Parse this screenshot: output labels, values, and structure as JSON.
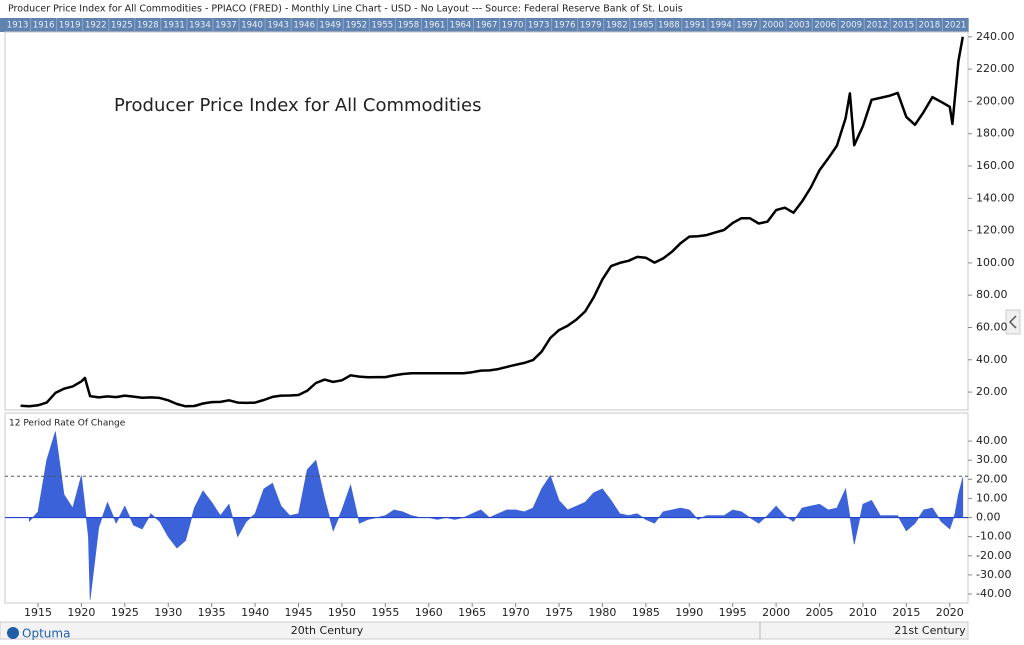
{
  "window_title": "Producer Price Index for All Commodities - PPIACO (FRED) - Monthly Line Chart - USD - No Layout --- Source: Federal Reserve Bank of St. Louis",
  "brand": "Optuma",
  "timeline": [
    1913,
    1916,
    1919,
    1922,
    1925,
    1928,
    1931,
    1934,
    1937,
    1940,
    1943,
    1946,
    1949,
    1952,
    1955,
    1958,
    1961,
    1964,
    1967,
    1970,
    1973,
    1976,
    1979,
    1982,
    1985,
    1988,
    1991,
    1994,
    1997,
    2000,
    2003,
    2006,
    2009,
    2012,
    2015,
    2018,
    2021
  ],
  "eras": [
    "20th Century",
    "21st Century"
  ],
  "chart_data": [
    {
      "type": "line",
      "annotation": "Producer Price Index for All Commodities",
      "color": "#000000",
      "xlim": [
        1911.2,
        2022.1
      ],
      "ylim": [
        8.9,
        243
      ],
      "yticks": [
        {
          "value": 20,
          "label": "20.00"
        },
        {
          "value": 40,
          "label": "40.00"
        },
        {
          "value": 60,
          "label": "60.00"
        },
        {
          "value": 80,
          "label": "80.00"
        },
        {
          "value": 100,
          "label": "100.00"
        },
        {
          "value": 120,
          "label": "120.00"
        },
        {
          "value": 140,
          "label": "140.00"
        },
        {
          "value": 160,
          "label": "160.00"
        },
        {
          "value": 180,
          "label": "180.00"
        },
        {
          "value": 200,
          "label": "200.00"
        },
        {
          "value": 220,
          "label": "220.00"
        },
        {
          "value": 240,
          "label": "240.00"
        }
      ],
      "x": [
        1913,
        1914,
        1915,
        1916,
        1917,
        1918,
        1919,
        1920,
        1920.4,
        1921,
        1922,
        1923,
        1924,
        1925,
        1926,
        1927,
        1928,
        1929,
        1930,
        1931,
        1932,
        1933,
        1934,
        1935,
        1936,
        1937,
        1938,
        1939,
        1940,
        1941,
        1942,
        1943,
        1944,
        1945,
        1946,
        1947,
        1948,
        1949,
        1950,
        1951,
        1952,
        1953,
        1954,
        1955,
        1956,
        1957,
        1958,
        1959,
        1960,
        1961,
        1962,
        1963,
        1964,
        1965,
        1966,
        1967,
        1968,
        1969,
        1970,
        1971,
        1972,
        1973,
        1974,
        1975,
        1976,
        1977,
        1978,
        1979,
        1980,
        1981,
        1982,
        1983,
        1984,
        1985,
        1986,
        1987,
        1988,
        1989,
        1990,
        1991,
        1992,
        1993,
        1994,
        1995,
        1996,
        1997,
        1998,
        1999,
        2000,
        2001,
        2002,
        2003,
        2004,
        2005,
        2006,
        2007,
        2008,
        2008.5,
        2009,
        2010,
        2011,
        2012,
        2013,
        2014,
        2015,
        2016,
        2017,
        2018,
        2019,
        2020,
        2020.3,
        2021,
        2021.5
      ],
      "values": [
        11.5,
        11.2,
        11.8,
        13.5,
        19.5,
        22.1,
        23.5,
        26.6,
        28.8,
        17.5,
        16.7,
        17.3,
        16.9,
        17.8,
        17.2,
        16.5,
        16.7,
        16.4,
        14.9,
        12.6,
        11.2,
        11.4,
        12.9,
        13.8,
        13.9,
        14.9,
        13.5,
        13.3,
        13.5,
        15.1,
        17.0,
        17.8,
        17.9,
        18.2,
        20.8,
        25.6,
        27.7,
        26.3,
        27.3,
        30.4,
        29.6,
        29.2,
        29.3,
        29.3,
        30.3,
        31.2,
        31.6,
        31.7,
        31.7,
        31.6,
        31.7,
        31.6,
        31.6,
        32.3,
        33.3,
        33.4,
        34.2,
        35.6,
        36.9,
        38.1,
        39.8,
        45.0,
        53.5,
        58.4,
        61.1,
        64.9,
        69.9,
        78.7,
        89.8,
        98.0,
        100.0,
        101.3,
        103.7,
        103.2,
        100.2,
        102.8,
        106.9,
        112.2,
        116.3,
        116.5,
        117.2,
        118.9,
        120.4,
        124.7,
        127.7,
        127.6,
        124.4,
        125.5,
        132.7,
        134.2,
        131.1,
        138.1,
        146.7,
        157.4,
        164.7,
        172.6,
        189.6,
        205.0,
        172.9,
        184.7,
        201.0,
        202.2,
        203.4,
        205.3,
        190.4,
        185.5,
        193.5,
        202.7,
        199.8,
        196.7,
        186.0,
        225.0,
        240.0
      ]
    },
    {
      "type": "area",
      "title": "12 Period Rate Of Change",
      "color": "#3b62d8",
      "reference_line": 21.6,
      "xlim": [
        1911.2,
        2022.1
      ],
      "ylim": [
        -44.7,
        54.7
      ],
      "yticks": [
        {
          "value": -40,
          "label": "-40.00"
        },
        {
          "value": -30,
          "label": "-30.00"
        },
        {
          "value": -20,
          "label": "-20.00"
        },
        {
          "value": -10,
          "label": "-10.00"
        },
        {
          "value": 0,
          "label": "0.00"
        },
        {
          "value": 10,
          "label": "10.00"
        },
        {
          "value": 20,
          "label": "20.00"
        },
        {
          "value": 30,
          "label": "30.00"
        },
        {
          "value": 40,
          "label": "40.00"
        }
      ],
      "xticks": [
        1915,
        1920,
        1925,
        1930,
        1935,
        1940,
        1945,
        1950,
        1955,
        1960,
        1965,
        1970,
        1975,
        1980,
        1985,
        1990,
        1995,
        2000,
        2005,
        2010,
        2015,
        2020
      ],
      "x": [
        1914,
        1915,
        1916,
        1917,
        1918,
        1919,
        1920,
        1920.8,
        1921,
        1922,
        1923,
        1924,
        1925,
        1926,
        1927,
        1928,
        1929,
        1930,
        1931,
        1932,
        1933,
        1934,
        1935,
        1936,
        1937,
        1938,
        1939,
        1940,
        1941,
        1942,
        1943,
        1944,
        1945,
        1946,
        1947,
        1948,
        1949,
        1950,
        1951,
        1952,
        1953,
        1954,
        1955,
        1956,
        1957,
        1958,
        1959,
        1960,
        1961,
        1962,
        1963,
        1964,
        1965,
        1966,
        1967,
        1968,
        1969,
        1970,
        1971,
        1972,
        1973,
        1974,
        1975,
        1976,
        1977,
        1978,
        1979,
        1980,
        1981,
        1982,
        1983,
        1984,
        1985,
        1986,
        1987,
        1988,
        1989,
        1990,
        1991,
        1992,
        1993,
        1994,
        1995,
        1996,
        1997,
        1998,
        1999,
        2000,
        2001,
        2002,
        2003,
        2004,
        2005,
        2006,
        2007,
        2008,
        2009,
        2010,
        2011,
        2012,
        2013,
        2014,
        2015,
        2016,
        2017,
        2018,
        2019,
        2020,
        2020.6,
        2021,
        2021.5
      ],
      "values": [
        -2,
        3,
        30,
        45,
        12,
        5,
        22,
        -10,
        -43,
        -5,
        8,
        -3,
        6,
        -4,
        -6,
        2,
        -2,
        -10,
        -16,
        -12,
        5,
        14,
        8,
        1,
        7,
        -10,
        -2,
        2,
        15,
        18,
        6,
        1,
        2,
        25,
        30,
        10,
        -7,
        4,
        17,
        -3,
        -1,
        0,
        1,
        4,
        3,
        1,
        0,
        0,
        -1,
        0,
        -1,
        0,
        2,
        4,
        0,
        2,
        4,
        4,
        3,
        5,
        15,
        22,
        9,
        4,
        6,
        8,
        13,
        15,
        9,
        2,
        1,
        2,
        -1,
        -3,
        3,
        4,
        5,
        4,
        -1,
        1,
        1,
        1,
        4,
        3,
        0,
        -3,
        1,
        6,
        1,
        -2,
        5,
        6,
        7,
        4,
        5,
        15,
        -14,
        7,
        9,
        1,
        1,
        1,
        -7,
        -3,
        4,
        5,
        -2,
        -6,
        2,
        12,
        21
      ]
    }
  ]
}
